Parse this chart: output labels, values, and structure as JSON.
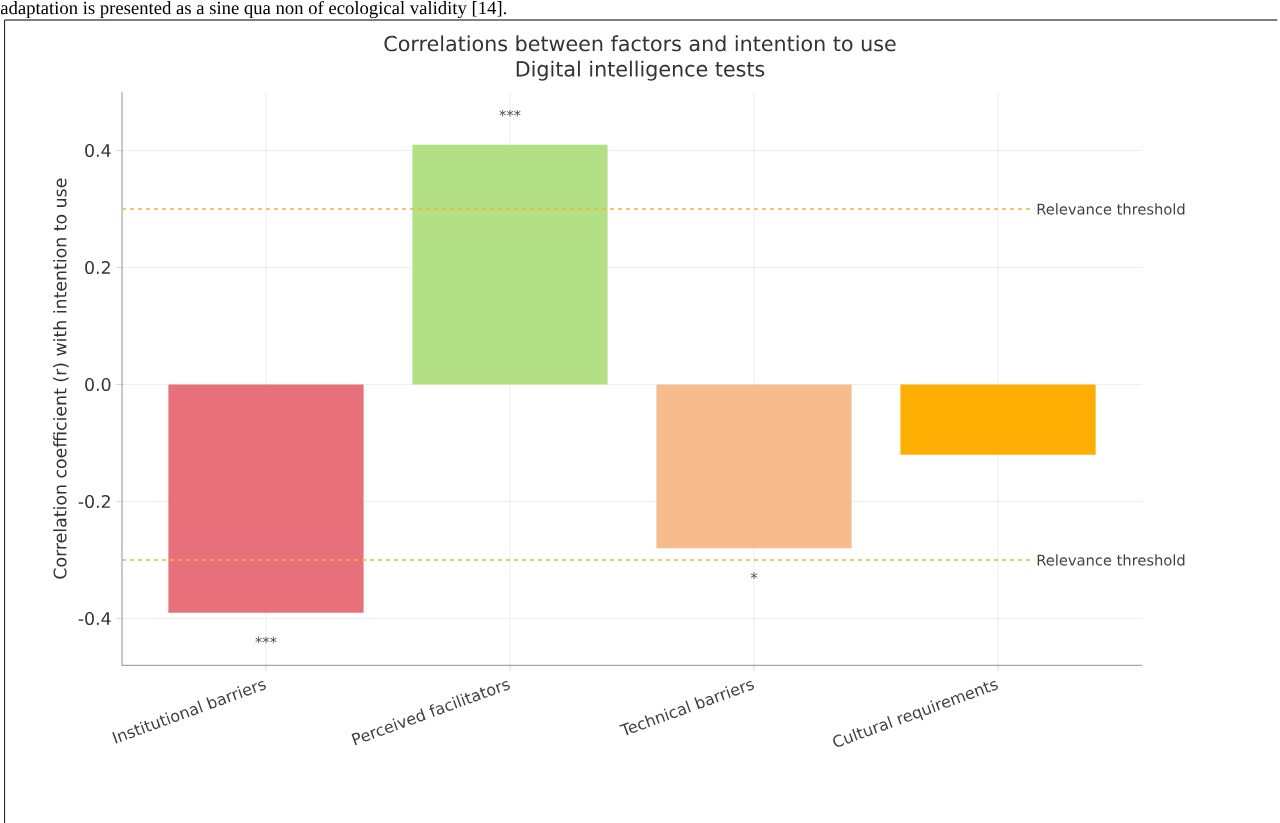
{
  "chart_data": {
    "type": "bar",
    "title": "Correlations between factors and intention to use",
    "subtitle": "Digital intelligence tests",
    "ylabel": "Correlation coefficient (r) with intention to use",
    "categories": [
      "Institutional barriers",
      "Perceived facilitators",
      "Technical barriers",
      "Cultural requirements"
    ],
    "values": [
      -0.39,
      0.41,
      -0.28,
      -0.12
    ],
    "colors": [
      "#e8707a",
      "#b3df85",
      "#f7bc8d",
      "#fdae02"
    ],
    "ylim": [
      -0.48,
      0.5
    ],
    "yticks": [
      -0.4,
      -0.2,
      {
        "value": 0,
        "label": "0.0"
      },
      0.2,
      0.4
    ],
    "grid": true,
    "ref_lines": [
      {
        "axis": "y",
        "value": 0.3,
        "label": "Relevance threshold",
        "color": "#f5b342",
        "line_style": "dashed"
      },
      {
        "axis": "y",
        "value": -0.3,
        "label": "Relevance threshold",
        "color": "#f5b342",
        "line_style": "dashed"
      }
    ],
    "annotations": [
      "adaptation is presented as a sine qua non of ecological validity [14].",
      "***",
      "***",
      "*"
    ]
  }
}
